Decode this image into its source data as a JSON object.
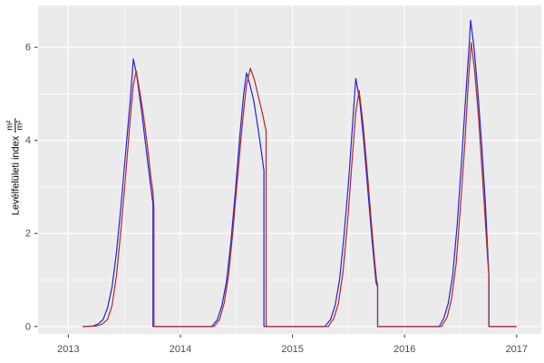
{
  "chart_data": {
    "type": "line",
    "title": "",
    "xlabel": "",
    "ylabel": "Levélfelületi index",
    "ylabel_unit_numerator": "m²",
    "ylabel_unit_denominator": "m²",
    "x_ticks": [
      2013,
      2014,
      2015,
      2016,
      2017
    ],
    "x_tick_labels": [
      "2013",
      "2014",
      "2015",
      "2016",
      "2017"
    ],
    "x_minor_ticks": [
      2013.5,
      2014.5,
      2015.5,
      2016.5
    ],
    "y_ticks": [
      0,
      2,
      4,
      6
    ],
    "y_tick_labels": [
      "0",
      "2",
      "4",
      "6"
    ],
    "y_minor_ticks": [
      1,
      3,
      5
    ],
    "xlim": [
      2012.73,
      2017.22
    ],
    "ylim": [
      -0.16,
      6.9
    ],
    "grid": "major-and-minor",
    "legend": "none",
    "panel_bg": "#EBEBEB",
    "grid_color": "#FFFFFF",
    "axis_text_color": "#4D4D4D",
    "tick_mark_color": "#333333",
    "series": [
      {
        "name": "blue-line",
        "color": "#2222DD",
        "points": [
          [
            2013.13,
            0
          ],
          [
            2013.22,
            0.01
          ],
          [
            2013.27,
            0.06
          ],
          [
            2013.31,
            0.15
          ],
          [
            2013.35,
            0.4
          ],
          [
            2013.39,
            0.85
          ],
          [
            2013.43,
            1.6
          ],
          [
            2013.47,
            2.6
          ],
          [
            2013.51,
            3.7
          ],
          [
            2013.55,
            4.8
          ],
          [
            2013.58,
            5.75
          ],
          [
            2013.61,
            5.4
          ],
          [
            2013.65,
            4.7
          ],
          [
            2013.69,
            3.9
          ],
          [
            2013.73,
            3.1
          ],
          [
            2013.755,
            2.65
          ],
          [
            2013.755,
            0
          ],
          [
            2013.9,
            0
          ],
          [
            2014.1,
            0
          ],
          [
            2014.28,
            0
          ],
          [
            2014.33,
            0.15
          ],
          [
            2014.37,
            0.45
          ],
          [
            2014.41,
            0.95
          ],
          [
            2014.45,
            1.8
          ],
          [
            2014.49,
            2.9
          ],
          [
            2014.53,
            4.1
          ],
          [
            2014.565,
            5.0
          ],
          [
            2014.59,
            5.45
          ],
          [
            2014.62,
            5.2
          ],
          [
            2014.655,
            4.85
          ],
          [
            2014.69,
            4.3
          ],
          [
            2014.72,
            3.8
          ],
          [
            2014.745,
            3.35
          ],
          [
            2014.745,
            0
          ],
          [
            2014.9,
            0
          ],
          [
            2015.1,
            0
          ],
          [
            2015.29,
            0
          ],
          [
            2015.34,
            0.15
          ],
          [
            2015.38,
            0.45
          ],
          [
            2015.42,
            1.0
          ],
          [
            2015.46,
            1.95
          ],
          [
            2015.5,
            3.1
          ],
          [
            2015.535,
            4.3
          ],
          [
            2015.565,
            5.33
          ],
          [
            2015.6,
            4.85
          ],
          [
            2015.635,
            4.0
          ],
          [
            2015.67,
            3.0
          ],
          [
            2015.71,
            1.85
          ],
          [
            2015.745,
            0.95
          ],
          [
            2015.76,
            0.85
          ],
          [
            2015.76,
            0
          ],
          [
            2015.9,
            0
          ],
          [
            2016.1,
            0
          ],
          [
            2016.31,
            0
          ],
          [
            2016.35,
            0.18
          ],
          [
            2016.39,
            0.5
          ],
          [
            2016.43,
            1.1
          ],
          [
            2016.47,
            2.2
          ],
          [
            2016.51,
            3.6
          ],
          [
            2016.55,
            5.1
          ],
          [
            2016.575,
            6.0
          ],
          [
            2016.59,
            6.58
          ],
          [
            2016.62,
            6.0
          ],
          [
            2016.655,
            5.0
          ],
          [
            2016.69,
            3.85
          ],
          [
            2016.72,
            2.7
          ],
          [
            2016.74,
            1.7
          ],
          [
            2016.752,
            1.1
          ],
          [
            2016.752,
            0
          ],
          [
            2016.9,
            0
          ],
          [
            2017.0,
            0
          ]
        ]
      },
      {
        "name": "red-line",
        "color": "#B22828",
        "points": [
          [
            2013.13,
            0
          ],
          [
            2013.25,
            0.01
          ],
          [
            2013.3,
            0.05
          ],
          [
            2013.35,
            0.15
          ],
          [
            2013.39,
            0.45
          ],
          [
            2013.43,
            1.1
          ],
          [
            2013.47,
            2.1
          ],
          [
            2013.51,
            3.2
          ],
          [
            2013.55,
            4.4
          ],
          [
            2013.58,
            5.2
          ],
          [
            2013.605,
            5.5
          ],
          [
            2013.64,
            5.0
          ],
          [
            2013.67,
            4.55
          ],
          [
            2013.71,
            3.8
          ],
          [
            2013.74,
            3.15
          ],
          [
            2013.755,
            2.9
          ],
          [
            2013.758,
            2.75
          ],
          [
            2013.764,
            2.55
          ],
          [
            2013.764,
            0
          ],
          [
            2013.9,
            0
          ],
          [
            2014.1,
            0
          ],
          [
            2014.3,
            0
          ],
          [
            2014.35,
            0.15
          ],
          [
            2014.39,
            0.5
          ],
          [
            2014.43,
            1.1
          ],
          [
            2014.47,
            2.1
          ],
          [
            2014.51,
            3.2
          ],
          [
            2014.55,
            4.3
          ],
          [
            2014.59,
            5.2
          ],
          [
            2014.625,
            5.55
          ],
          [
            2014.66,
            5.3
          ],
          [
            2014.7,
            4.9
          ],
          [
            2014.73,
            4.6
          ],
          [
            2014.765,
            4.2
          ],
          [
            2014.765,
            0
          ],
          [
            2014.9,
            0
          ],
          [
            2015.1,
            0
          ],
          [
            2015.32,
            0
          ],
          [
            2015.37,
            0.18
          ],
          [
            2015.41,
            0.5
          ],
          [
            2015.45,
            1.15
          ],
          [
            2015.49,
            2.2
          ],
          [
            2015.53,
            3.5
          ],
          [
            2015.565,
            4.6
          ],
          [
            2015.595,
            5.07
          ],
          [
            2015.63,
            4.35
          ],
          [
            2015.665,
            3.4
          ],
          [
            2015.7,
            2.35
          ],
          [
            2015.73,
            1.5
          ],
          [
            2015.75,
            1.0
          ],
          [
            2015.76,
            0.9
          ],
          [
            2015.76,
            0
          ],
          [
            2015.9,
            0
          ],
          [
            2016.1,
            0
          ],
          [
            2016.33,
            0
          ],
          [
            2016.38,
            0.2
          ],
          [
            2016.42,
            0.6
          ],
          [
            2016.46,
            1.35
          ],
          [
            2016.5,
            2.6
          ],
          [
            2016.54,
            4.0
          ],
          [
            2016.57,
            5.3
          ],
          [
            2016.595,
            6.1
          ],
          [
            2016.625,
            5.5
          ],
          [
            2016.66,
            4.5
          ],
          [
            2016.69,
            3.4
          ],
          [
            2016.72,
            2.3
          ],
          [
            2016.74,
            1.5
          ],
          [
            2016.754,
            1.05
          ],
          [
            2016.754,
            0
          ],
          [
            2016.9,
            0
          ],
          [
            2017.0,
            0
          ]
        ]
      }
    ]
  }
}
